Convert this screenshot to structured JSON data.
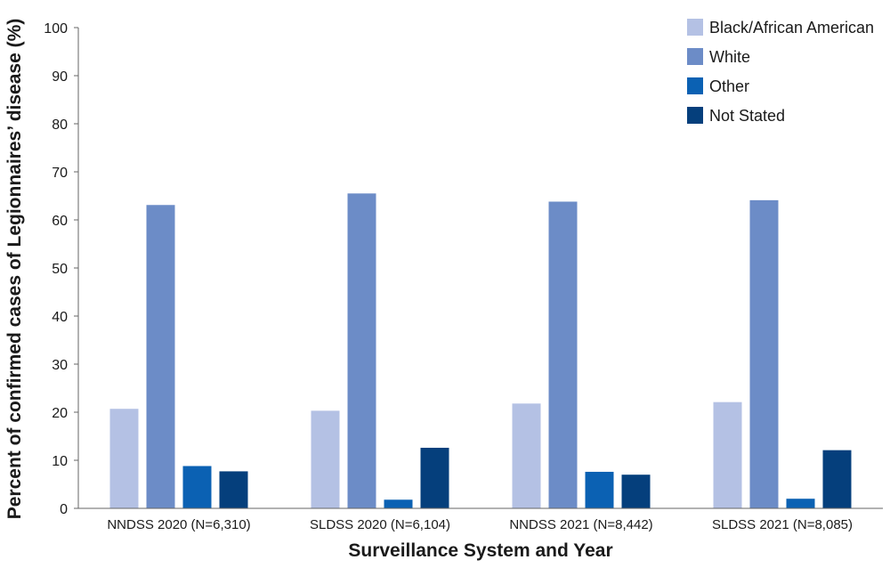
{
  "chart_data": {
    "type": "bar",
    "categories": [
      "NNDSS 2020 (N=6,310)",
      "SLDSS 2020 (N=6,104)",
      "NNDSS 2021 (N=8,442)",
      "SLDSS 2021 (N=8,085)"
    ],
    "series": [
      {
        "name": "Black/African American",
        "color": "#b4c1e4",
        "values": [
          20.7,
          20.3,
          21.8,
          22.1
        ]
      },
      {
        "name": "White",
        "color": "#6c8cc7",
        "values": [
          63.1,
          65.5,
          63.8,
          64.1
        ]
      },
      {
        "name": "Other",
        "color": "#0b61b3",
        "values": [
          8.8,
          1.8,
          7.6,
          2.0
        ]
      },
      {
        "name": "Not Stated",
        "color": "#053f7c",
        "values": [
          7.7,
          12.6,
          7.0,
          12.1
        ]
      }
    ],
    "xlabel": "Surveillance System and Year",
    "ylabel": "Percent of confirmed cases of Legionnaires’ disease  (%)",
    "ylim": [
      0,
      100
    ],
    "yticks": [
      0,
      10,
      20,
      30,
      40,
      50,
      60,
      70,
      80,
      90,
      100
    ],
    "grid": false,
    "legend": "top-right"
  }
}
